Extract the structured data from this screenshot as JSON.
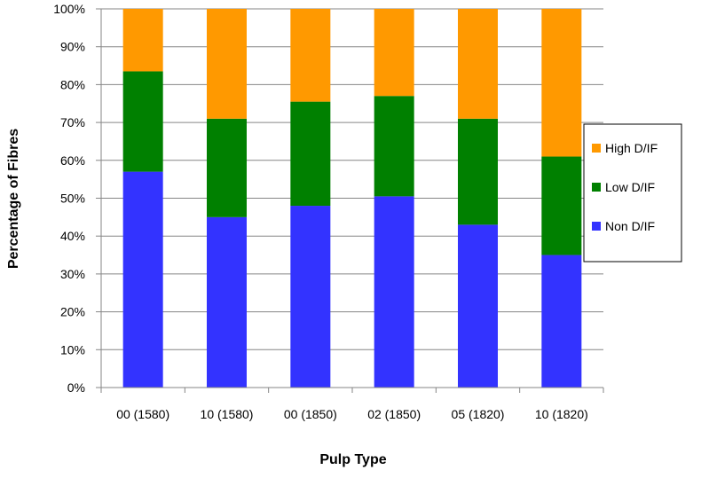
{
  "chart_data": {
    "type": "bar",
    "stacked": true,
    "title": "",
    "xlabel": "Pulp Type",
    "ylabel": "Percentage of Fibres",
    "categories": [
      "00 (1580)",
      "10 (1580)",
      "00 (1850)",
      "02 (1850)",
      "05 (1820)",
      "10 (1820)"
    ],
    "series": [
      {
        "name": "Non D/IF",
        "color": "#3333ff",
        "values": [
          57,
          45,
          48,
          50.5,
          43,
          35
        ]
      },
      {
        "name": "Low D/IF",
        "color": "#008000",
        "values": [
          26.5,
          26,
          27.5,
          26.5,
          28,
          26
        ]
      },
      {
        "name": "High D/IF",
        "color": "#ff9900",
        "values": [
          16.5,
          29,
          24.5,
          23,
          29,
          39
        ]
      }
    ],
    "ylim": [
      0,
      100
    ],
    "yticks": [
      "0%",
      "10%",
      "20%",
      "30%",
      "40%",
      "50%",
      "60%",
      "70%",
      "80%",
      "90%",
      "100%"
    ],
    "grid": true,
    "legend_position": "right",
    "legend_order": [
      "High D/IF",
      "Low D/IF",
      "Non D/IF"
    ]
  }
}
